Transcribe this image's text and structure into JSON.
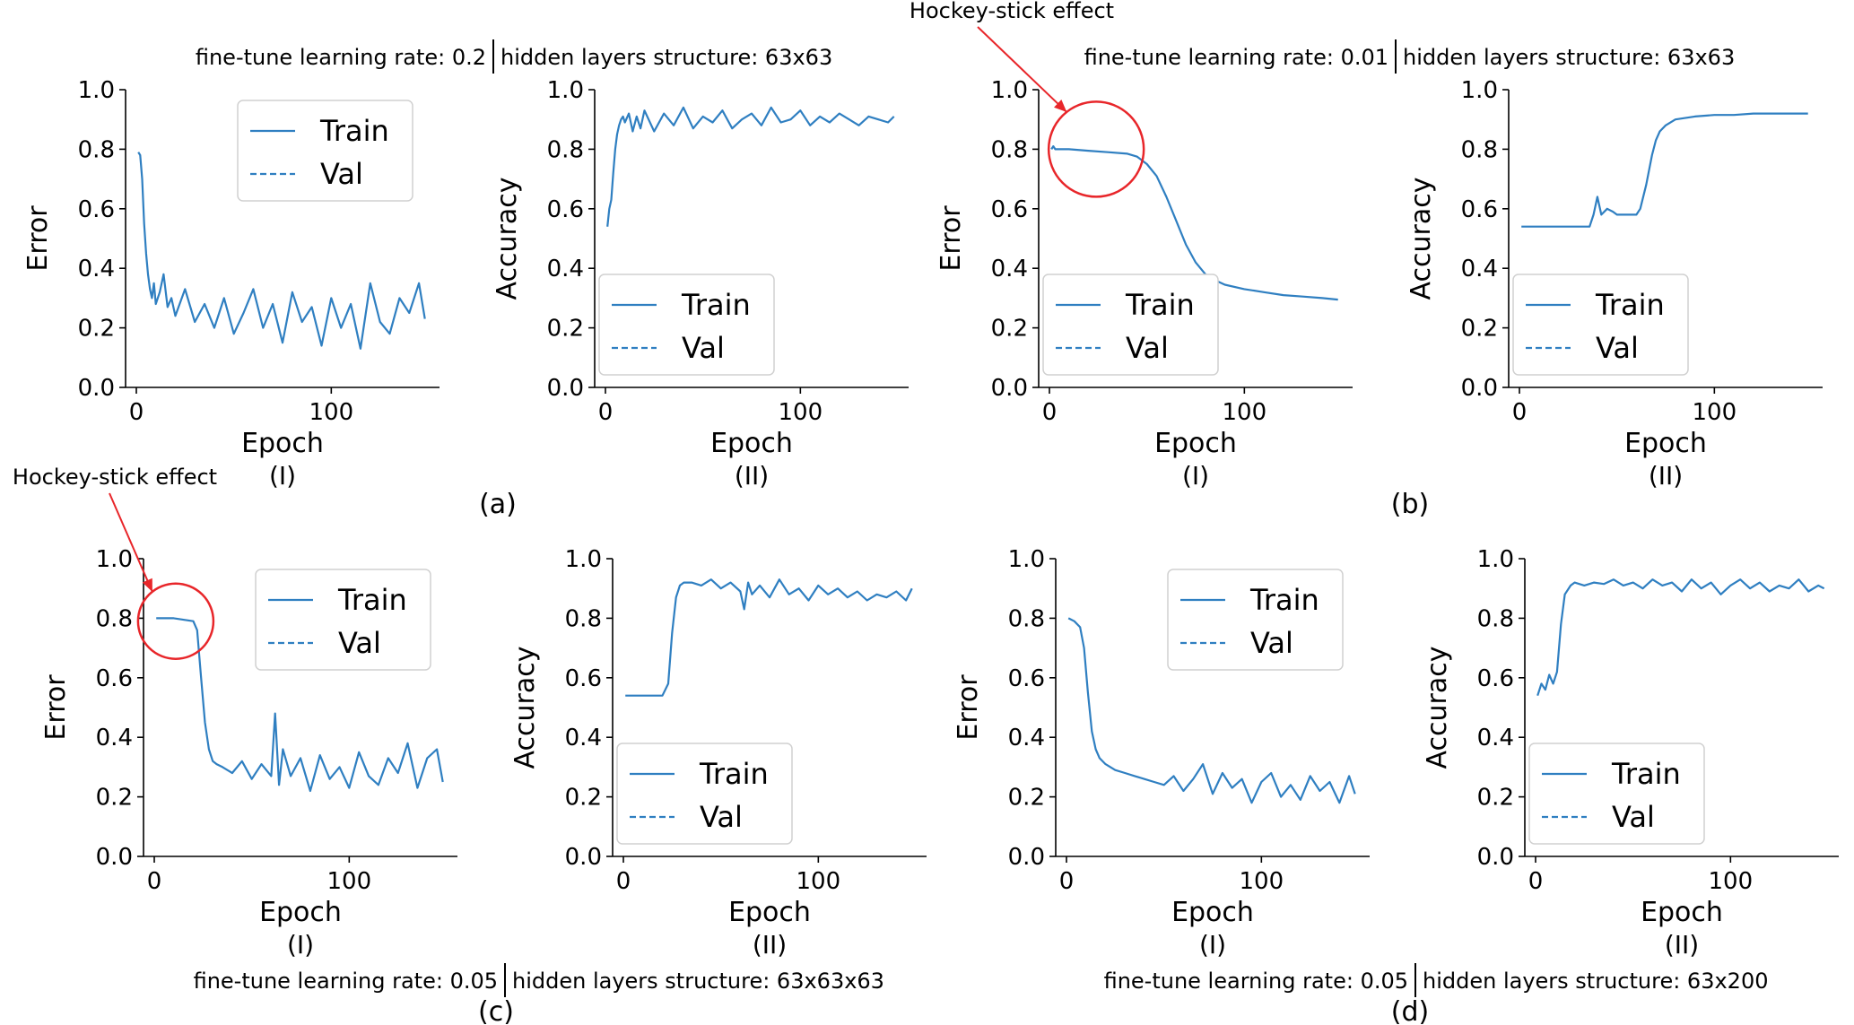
{
  "chart_data": [
    {
      "id": "a",
      "type": "line",
      "panel_label": "(a)",
      "caption": "fine-tune learning rate: 0.2",
      "caption2": "hidden layers structure: 63x63",
      "plots": [
        {
          "sublabel": "(I)",
          "ylabel": "Error",
          "xlabel": "Epoch",
          "ylim": [
            0,
            1
          ],
          "xlim": [
            0,
            150
          ],
          "yticks": [
            "0.0",
            "0.2",
            "0.4",
            "0.6",
            "0.8",
            "1.0"
          ],
          "xticks": [
            "0",
            "100"
          ],
          "legend": {
            "position": "upper-right",
            "entries": [
              "Train",
              "Val"
            ]
          },
          "series": [
            {
              "name": "Train",
              "style": "solid",
              "x": [
                1,
                2,
                3,
                4,
                5,
                6,
                7,
                8,
                9,
                10,
                12,
                14,
                16,
                18,
                20,
                25,
                30,
                35,
                40,
                45,
                50,
                55,
                60,
                65,
                70,
                75,
                80,
                85,
                90,
                95,
                100,
                105,
                110,
                115,
                120,
                125,
                130,
                135,
                140,
                145,
                148
              ],
              "y": [
                0.79,
                0.78,
                0.7,
                0.55,
                0.45,
                0.38,
                0.33,
                0.3,
                0.35,
                0.28,
                0.32,
                0.38,
                0.27,
                0.3,
                0.24,
                0.33,
                0.22,
                0.28,
                0.2,
                0.3,
                0.18,
                0.25,
                0.33,
                0.2,
                0.28,
                0.15,
                0.32,
                0.22,
                0.27,
                0.14,
                0.3,
                0.2,
                0.28,
                0.13,
                0.35,
                0.22,
                0.18,
                0.3,
                0.25,
                0.35,
                0.23
              ]
            }
          ]
        },
        {
          "sublabel": "(II)",
          "ylabel": "Accuracy",
          "xlabel": "Epoch",
          "ylim": [
            0,
            1
          ],
          "xlim": [
            0,
            150
          ],
          "yticks": [
            "0.0",
            "0.2",
            "0.4",
            "0.6",
            "0.8",
            "1.0"
          ],
          "xticks": [
            "0",
            "100"
          ],
          "legend": {
            "position": "lower-left",
            "entries": [
              "Train",
              "Val"
            ]
          },
          "series": [
            {
              "name": "Train",
              "style": "solid",
              "x": [
                1,
                2,
                3,
                4,
                5,
                6,
                7,
                8,
                9,
                10,
                12,
                14,
                16,
                18,
                20,
                25,
                30,
                35,
                40,
                45,
                50,
                55,
                60,
                65,
                70,
                75,
                80,
                85,
                90,
                95,
                100,
                105,
                110,
                115,
                120,
                125,
                130,
                135,
                140,
                145,
                148
              ],
              "y": [
                0.54,
                0.6,
                0.63,
                0.72,
                0.8,
                0.85,
                0.88,
                0.9,
                0.91,
                0.89,
                0.92,
                0.86,
                0.91,
                0.87,
                0.93,
                0.86,
                0.92,
                0.88,
                0.94,
                0.87,
                0.91,
                0.89,
                0.93,
                0.87,
                0.9,
                0.92,
                0.88,
                0.94,
                0.89,
                0.9,
                0.93,
                0.88,
                0.91,
                0.89,
                0.92,
                0.9,
                0.88,
                0.91,
                0.9,
                0.89,
                0.91
              ]
            }
          ]
        }
      ]
    },
    {
      "id": "b",
      "type": "line",
      "panel_label": "(b)",
      "caption": "fine-tune learning rate: 0.01",
      "caption2": "hidden layers structure: 63x63",
      "annotation": "Hockey-stick effect",
      "plots": [
        {
          "sublabel": "(I)",
          "ylabel": "Error",
          "xlabel": "Epoch",
          "ylim": [
            0,
            1
          ],
          "xlim": [
            0,
            150
          ],
          "yticks": [
            "0.0",
            "0.2",
            "0.4",
            "0.6",
            "0.8",
            "1.0"
          ],
          "xticks": [
            "0",
            "100"
          ],
          "legend": {
            "position": "lower-left",
            "entries": [
              "Train",
              "Val"
            ]
          },
          "hockey_circle": {
            "x": 24,
            "y": 0.8
          },
          "series": [
            {
              "name": "Train",
              "style": "solid",
              "x": [
                1,
                2,
                3,
                5,
                10,
                20,
                30,
                40,
                45,
                50,
                55,
                60,
                65,
                70,
                75,
                80,
                85,
                90,
                100,
                110,
                120,
                130,
                140,
                148
              ],
              "y": [
                0.8,
                0.81,
                0.8,
                0.8,
                0.8,
                0.795,
                0.79,
                0.785,
                0.775,
                0.75,
                0.71,
                0.64,
                0.56,
                0.48,
                0.42,
                0.38,
                0.36,
                0.345,
                0.33,
                0.32,
                0.31,
                0.305,
                0.3,
                0.295
              ]
            }
          ]
        },
        {
          "sublabel": "(II)",
          "ylabel": "Accuracy",
          "xlabel": "Epoch",
          "ylim": [
            0,
            1
          ],
          "xlim": [
            0,
            150
          ],
          "yticks": [
            "0.0",
            "0.2",
            "0.4",
            "0.6",
            "0.8",
            "1.0"
          ],
          "xticks": [
            "0",
            "100"
          ],
          "legend": {
            "position": "lower-left",
            "entries": [
              "Train",
              "Val"
            ]
          },
          "series": [
            {
              "name": "Train",
              "style": "solid",
              "x": [
                1,
                10,
                20,
                30,
                36,
                38,
                40,
                42,
                45,
                48,
                50,
                55,
                60,
                62,
                65,
                68,
                70,
                72,
                75,
                80,
                90,
                100,
                110,
                120,
                130,
                140,
                148
              ],
              "y": [
                0.54,
                0.54,
                0.54,
                0.54,
                0.54,
                0.58,
                0.64,
                0.58,
                0.6,
                0.59,
                0.58,
                0.58,
                0.58,
                0.6,
                0.68,
                0.78,
                0.83,
                0.86,
                0.88,
                0.9,
                0.91,
                0.915,
                0.915,
                0.92,
                0.92,
                0.92,
                0.92
              ]
            }
          ]
        }
      ]
    },
    {
      "id": "c",
      "type": "line",
      "panel_label": "(c)",
      "caption": "fine-tune learning rate: 0.05",
      "caption2": "hidden layers structure: 63x63x63",
      "annotation": "Hockey-stick effect",
      "plots": [
        {
          "sublabel": "(I)",
          "ylabel": "Error",
          "xlabel": "Epoch",
          "ylim": [
            0,
            1
          ],
          "xlim": [
            0,
            150
          ],
          "yticks": [
            "0.0",
            "0.2",
            "0.4",
            "0.6",
            "0.8",
            "1.0"
          ],
          "xticks": [
            "0",
            "100"
          ],
          "legend": {
            "position": "upper-right",
            "entries": [
              "Train",
              "Val"
            ]
          },
          "hockey_circle": {
            "x": 11,
            "y": 0.79
          },
          "series": [
            {
              "name": "Train",
              "style": "solid",
              "x": [
                1,
                5,
                10,
                15,
                20,
                22,
                24,
                26,
                28,
                30,
                32,
                35,
                40,
                45,
                50,
                55,
                60,
                62,
                64,
                66,
                70,
                75,
                80,
                85,
                90,
                95,
                100,
                105,
                110,
                115,
                120,
                125,
                130,
                135,
                140,
                145,
                148
              ],
              "y": [
                0.8,
                0.8,
                0.8,
                0.795,
                0.79,
                0.76,
                0.6,
                0.45,
                0.36,
                0.32,
                0.31,
                0.3,
                0.28,
                0.32,
                0.26,
                0.31,
                0.27,
                0.48,
                0.24,
                0.36,
                0.27,
                0.33,
                0.22,
                0.34,
                0.26,
                0.3,
                0.23,
                0.35,
                0.27,
                0.24,
                0.33,
                0.28,
                0.38,
                0.23,
                0.33,
                0.36,
                0.25
              ]
            }
          ]
        },
        {
          "sublabel": "(II)",
          "ylabel": "Accuracy",
          "xlabel": "Epoch",
          "ylim": [
            0,
            1
          ],
          "xlim": [
            0,
            150
          ],
          "yticks": [
            "0.0",
            "0.2",
            "0.4",
            "0.6",
            "0.8",
            "1.0"
          ],
          "xticks": [
            "0",
            "100"
          ],
          "legend": {
            "position": "lower-left",
            "entries": [
              "Train",
              "Val"
            ]
          },
          "series": [
            {
              "name": "Train",
              "style": "solid",
              "x": [
                1,
                10,
                20,
                23,
                25,
                27,
                29,
                31,
                35,
                40,
                45,
                50,
                55,
                60,
                62,
                64,
                66,
                70,
                75,
                80,
                85,
                90,
                95,
                100,
                105,
                110,
                115,
                120,
                125,
                130,
                135,
                140,
                145,
                148
              ],
              "y": [
                0.54,
                0.54,
                0.54,
                0.58,
                0.75,
                0.87,
                0.91,
                0.92,
                0.92,
                0.91,
                0.93,
                0.9,
                0.92,
                0.89,
                0.83,
                0.92,
                0.88,
                0.91,
                0.87,
                0.93,
                0.88,
                0.9,
                0.86,
                0.91,
                0.88,
                0.9,
                0.87,
                0.89,
                0.86,
                0.88,
                0.87,
                0.89,
                0.86,
                0.9
              ]
            }
          ]
        }
      ]
    },
    {
      "id": "d",
      "type": "line",
      "panel_label": "(d)",
      "caption": "fine-tune learning rate: 0.05",
      "caption2": "hidden layers structure: 63x200",
      "plots": [
        {
          "sublabel": "(I)",
          "ylabel": "Error",
          "xlabel": "Epoch",
          "ylim": [
            0,
            1
          ],
          "xlim": [
            0,
            150
          ],
          "yticks": [
            "0.0",
            "0.2",
            "0.4",
            "0.6",
            "0.8",
            "1.0"
          ],
          "xticks": [
            "0",
            "100"
          ],
          "legend": {
            "position": "upper-right",
            "entries": [
              "Train",
              "Val"
            ]
          },
          "series": [
            {
              "name": "Train",
              "style": "solid",
              "x": [
                1,
                4,
                7,
                9,
                11,
                13,
                15,
                17,
                20,
                25,
                30,
                35,
                40,
                45,
                50,
                55,
                60,
                65,
                70,
                75,
                80,
                85,
                90,
                95,
                100,
                105,
                110,
                115,
                120,
                125,
                130,
                135,
                140,
                145,
                148
              ],
              "y": [
                0.8,
                0.79,
                0.77,
                0.7,
                0.55,
                0.42,
                0.36,
                0.33,
                0.31,
                0.29,
                0.28,
                0.27,
                0.26,
                0.25,
                0.24,
                0.27,
                0.22,
                0.26,
                0.31,
                0.21,
                0.28,
                0.23,
                0.26,
                0.18,
                0.25,
                0.28,
                0.2,
                0.24,
                0.19,
                0.27,
                0.22,
                0.25,
                0.18,
                0.27,
                0.21
              ]
            }
          ]
        },
        {
          "sublabel": "(II)",
          "ylabel": "Accuracy",
          "xlabel": "Epoch",
          "ylim": [
            0,
            1
          ],
          "xlim": [
            0,
            150
          ],
          "yticks": [
            "0.0",
            "0.2",
            "0.4",
            "0.6",
            "0.8",
            "1.0"
          ],
          "xticks": [
            "0",
            "100"
          ],
          "legend": {
            "position": "lower-left",
            "entries": [
              "Train",
              "Val"
            ]
          },
          "series": [
            {
              "name": "Train",
              "style": "solid",
              "x": [
                1,
                3,
                5,
                7,
                9,
                11,
                13,
                15,
                18,
                20,
                25,
                30,
                35,
                40,
                45,
                50,
                55,
                60,
                65,
                70,
                75,
                80,
                85,
                90,
                95,
                100,
                105,
                110,
                115,
                120,
                125,
                130,
                135,
                140,
                145,
                148
              ],
              "y": [
                0.54,
                0.58,
                0.56,
                0.61,
                0.58,
                0.62,
                0.78,
                0.88,
                0.91,
                0.92,
                0.91,
                0.92,
                0.915,
                0.93,
                0.91,
                0.92,
                0.9,
                0.93,
                0.91,
                0.92,
                0.89,
                0.93,
                0.9,
                0.92,
                0.88,
                0.91,
                0.93,
                0.9,
                0.92,
                0.89,
                0.91,
                0.9,
                0.93,
                0.89,
                0.91,
                0.9
              ]
            }
          ]
        }
      ]
    }
  ],
  "style": {
    "line_color": "#2f7fc1",
    "annotation_color": "#e8262a",
    "axis_color": "#000000"
  }
}
